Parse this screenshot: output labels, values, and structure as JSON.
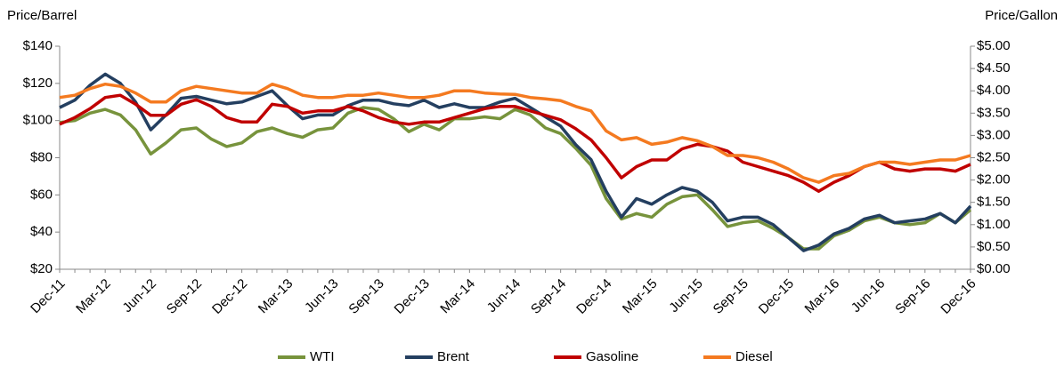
{
  "chart_data": {
    "type": "line",
    "y_label": "Price/Barrel",
    "y2_label": "Price/Gallon",
    "categories": [
      "Dec-11",
      null,
      null,
      "Mar-12",
      null,
      null,
      "Jun-12",
      null,
      null,
      "Sep-12",
      null,
      null,
      "Dec-12",
      null,
      null,
      "Mar-13",
      null,
      null,
      "Jun-13",
      null,
      null,
      "Sep-13",
      null,
      null,
      "Dec-13",
      null,
      null,
      "Mar-14",
      null,
      null,
      "Jun-14",
      null,
      null,
      "Sep-14",
      null,
      null,
      "Dec-14",
      null,
      null,
      "Mar-15",
      null,
      null,
      "Jun-15",
      null,
      null,
      "Sep-15",
      null,
      null,
      "Dec-15",
      null,
      null,
      "Mar-16",
      null,
      null,
      "Jun-16",
      null,
      null,
      "Sep-16",
      null,
      null,
      "Dec-16"
    ],
    "series": [
      {
        "name": "WTI",
        "color": "#77933c",
        "values": [
          99,
          100,
          104,
          106,
          103,
          95,
          82,
          88,
          95,
          96,
          90,
          86,
          88,
          94,
          96,
          93,
          91,
          95,
          96,
          104,
          107,
          106,
          101,
          94,
          98,
          95,
          101,
          101,
          102,
          101,
          106,
          103,
          96,
          93,
          85,
          76,
          58,
          47,
          50,
          48,
          55,
          59,
          60,
          52,
          43,
          45,
          46,
          42,
          37,
          31,
          31,
          38,
          41,
          46,
          48,
          45,
          44,
          45,
          50,
          45,
          52
        ]
      },
      {
        "name": "Brent",
        "color": "#243f60",
        "values": [
          107,
          111,
          119,
          125,
          120,
          110,
          95,
          103,
          112,
          113,
          111,
          109,
          110,
          113,
          116,
          108,
          101,
          103,
          103,
          108,
          111,
          111,
          109,
          108,
          111,
          107,
          109,
          107,
          107,
          110,
          112,
          107,
          102,
          97,
          87,
          79,
          62,
          48,
          58,
          55,
          60,
          64,
          62,
          56,
          46,
          48,
          48,
          44,
          37,
          30,
          33,
          39,
          42,
          47,
          49,
          45,
          46,
          47,
          50,
          45,
          54
        ]
      },
      {
        "name": "Gasoline",
        "color": "#c00000",
        "axis": "y2",
        "values": [
          3.25,
          3.4,
          3.6,
          3.85,
          3.9,
          3.7,
          3.45,
          3.45,
          3.7,
          3.8,
          3.65,
          3.4,
          3.3,
          3.3,
          3.7,
          3.65,
          3.5,
          3.55,
          3.55,
          3.65,
          3.55,
          3.4,
          3.3,
          3.25,
          3.3,
          3.3,
          3.4,
          3.5,
          3.6,
          3.65,
          3.65,
          3.55,
          3.45,
          3.35,
          3.15,
          2.9,
          2.5,
          2.05,
          2.3,
          2.45,
          2.45,
          2.7,
          2.8,
          2.75,
          2.65,
          2.4,
          2.3,
          2.2,
          2.1,
          1.95,
          1.75,
          1.95,
          2.1,
          2.3,
          2.4,
          2.25,
          2.2,
          2.25,
          2.25,
          2.2,
          2.35
        ]
      },
      {
        "name": "Diesel",
        "color": "#f47a20",
        "axis": "y2",
        "values": [
          3.85,
          3.9,
          4.05,
          4.15,
          4.1,
          3.95,
          3.75,
          3.75,
          4.0,
          4.1,
          4.05,
          4.0,
          3.95,
          3.95,
          4.15,
          4.05,
          3.9,
          3.85,
          3.85,
          3.9,
          3.9,
          3.95,
          3.9,
          3.85,
          3.85,
          3.9,
          4.0,
          4.0,
          3.95,
          3.93,
          3.92,
          3.85,
          3.82,
          3.78,
          3.65,
          3.55,
          3.1,
          2.9,
          2.95,
          2.8,
          2.85,
          2.95,
          2.88,
          2.75,
          2.55,
          2.55,
          2.5,
          2.4,
          2.25,
          2.05,
          1.95,
          2.1,
          2.15,
          2.3,
          2.4,
          2.4,
          2.35,
          2.4,
          2.45,
          2.45,
          2.55
        ]
      }
    ],
    "ylim": [
      20,
      140
    ],
    "yticks": [
      {
        "value": 20,
        "label": "$20"
      },
      {
        "value": 40,
        "label": "$40"
      },
      {
        "value": 60,
        "label": "$60"
      },
      {
        "value": 80,
        "label": "$80"
      },
      {
        "value": 100,
        "label": "$100"
      },
      {
        "value": 120,
        "label": "$120"
      },
      {
        "value": 140,
        "label": "$140"
      }
    ],
    "y2lim": [
      0,
      5
    ],
    "y2ticks": [
      {
        "value": 0,
        "label": "$0.00"
      },
      {
        "value": 0.5,
        "label": "$0.50"
      },
      {
        "value": 1,
        "label": "$1.00"
      },
      {
        "value": 1.5,
        "label": "$1.50"
      },
      {
        "value": 2,
        "label": "$2.00"
      },
      {
        "value": 2.5,
        "label": "$2.50"
      },
      {
        "value": 3,
        "label": "$3.00"
      },
      {
        "value": 3.5,
        "label": "$3.50"
      },
      {
        "value": 4,
        "label": "$4.00"
      },
      {
        "value": 4.5,
        "label": "$4.50"
      },
      {
        "value": 5,
        "label": "$5.00"
      }
    ],
    "legend": "bottom"
  }
}
